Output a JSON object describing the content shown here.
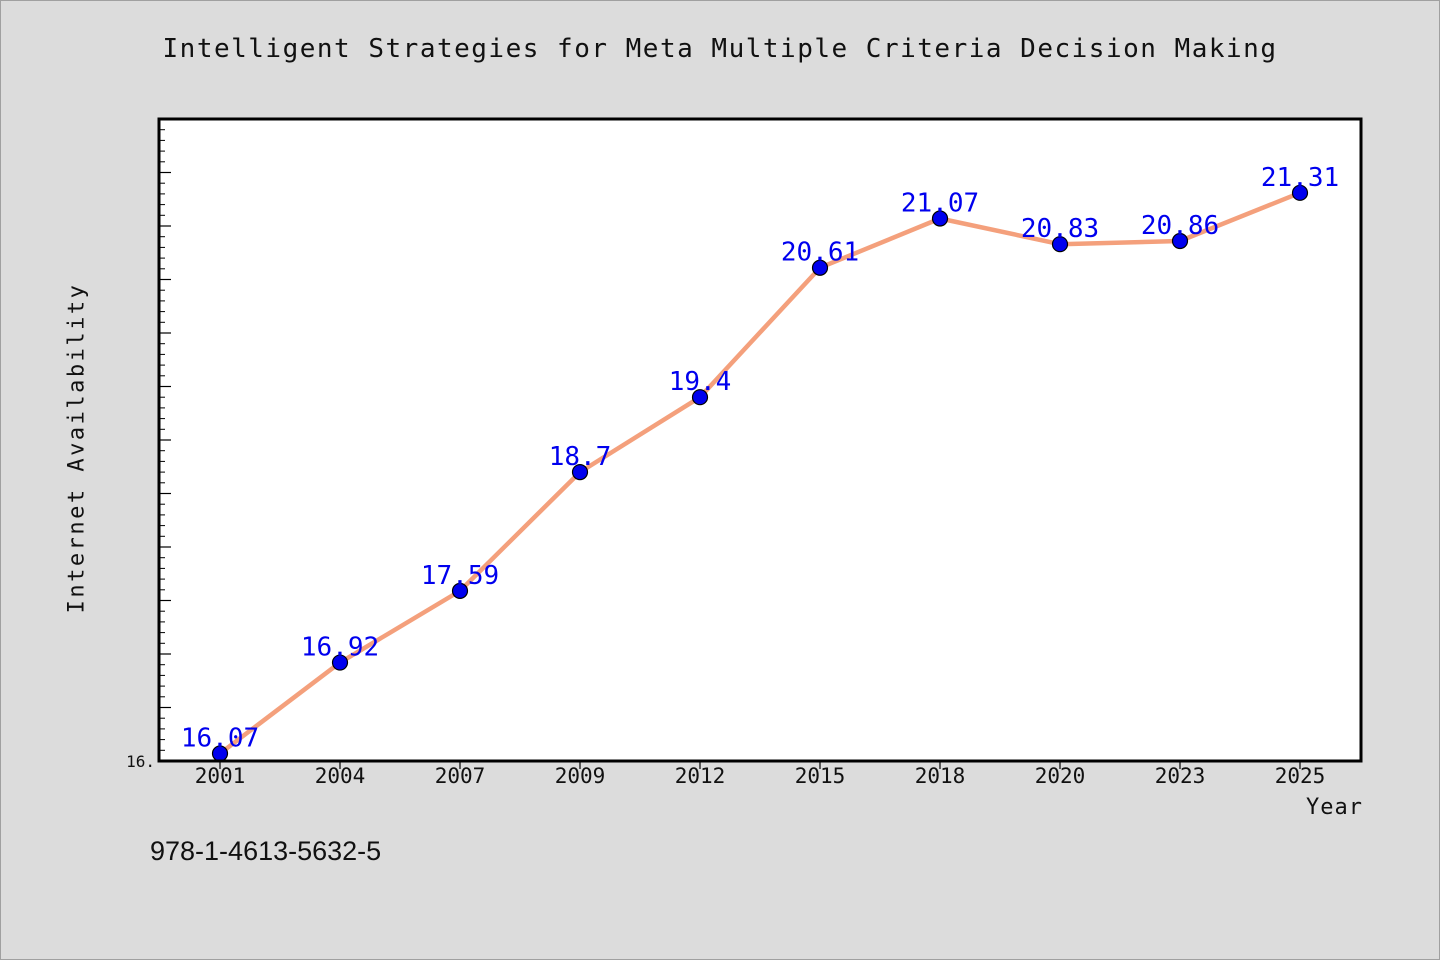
{
  "title": "Intelligent Strategies for Meta Multiple Criteria Decision Making",
  "footer_text": "978-1-4613-5632-5",
  "colors": {
    "line": "#f4a07c",
    "marker": "#0000ee",
    "data_label": "#0000ee",
    "plot_background": "#ffffff",
    "page_background": "#dcdcdc"
  },
  "chart_data": {
    "type": "line",
    "xlabel": "Year",
    "ylabel": "Internet Availability",
    "categories": [
      "2001",
      "2004",
      "2007",
      "2009",
      "2012",
      "2015",
      "2018",
      "2020",
      "2023",
      "2025"
    ],
    "series": [
      {
        "values": [
          16.07,
          16.92,
          17.59,
          18.7,
          19.4,
          20.61,
          21.07,
          20.83,
          20.86,
          21.31
        ]
      }
    ],
    "data_labels": [
      "16.07",
      "16.92",
      "17.59",
      "18.7",
      "19.4",
      "20.61",
      "21.07",
      "20.83",
      "20.86",
      "21.31"
    ],
    "ylim": [
      16,
      22
    ],
    "ytick_labels": [
      "16."
    ],
    "grid": false,
    "legend": "none"
  }
}
